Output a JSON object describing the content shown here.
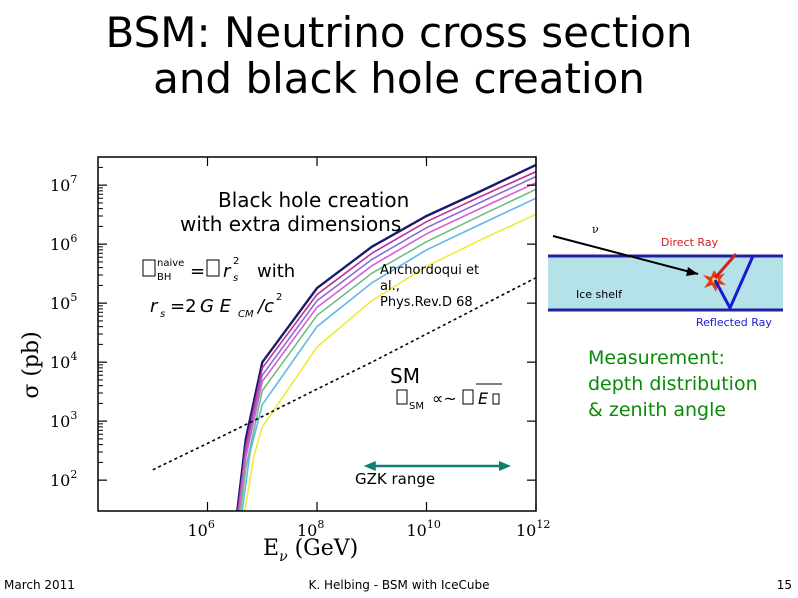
{
  "slide": {
    "title_line1": "BSM: Neutrino cross section",
    "title_line2": "and black hole creation",
    "measurement_line1": "Measurement:",
    "measurement_line2": "depth distribution",
    "measurement_line3": "& zenith angle",
    "footer_left": "March 2011",
    "footer_center": "K. Helbing - BSM with IceCube",
    "footer_right": "15"
  },
  "inset": {
    "nu_label": "ν",
    "direct_ray": "Direct Ray",
    "ice_shelf": "Ice shelf",
    "reflected_ray": "Reflected Ray"
  },
  "colors": {
    "title": "#000000",
    "measurement": "#0a8a0a",
    "gzk_arrow": "#0f7f73",
    "direct_ray": "#d02020",
    "reflected_ray": "#1a1ad0",
    "ice": "#b4e2e8",
    "ice_boundary": "#2020a0"
  },
  "chart_data": {
    "type": "line",
    "xlabel": "E_ν (GeV)",
    "ylabel": "σ (pb)",
    "x_scale": "log",
    "y_scale": "log",
    "xlim": [
      10000,
      1000000000000
    ],
    "ylim": [
      30,
      30000000
    ],
    "x_ticks": [
      {
        "exp": "6",
        "value": 1000000
      },
      {
        "exp": "8",
        "value": 100000000
      },
      {
        "exp": "10",
        "value": 10000000000
      },
      {
        "exp": "12",
        "value": 1000000000000
      }
    ],
    "y_ticks": [
      {
        "exp": "2",
        "value": 100
      },
      {
        "exp": "3",
        "value": 1000
      },
      {
        "exp": "4",
        "value": 10000
      },
      {
        "exp": "5",
        "value": 100000
      },
      {
        "exp": "6",
        "value": 1000000
      },
      {
        "exp": "7",
        "value": 10000000
      }
    ],
    "tick_base": "10",
    "annotations": {
      "bh_title_line1": "Black hole creation",
      "bh_title_line2": "with extra dimensions",
      "formula1": "□BH^naive = □ r_s² with",
      "formula1_sub": "naive",
      "formula2": "r_s = 2 G E_CM / c²",
      "citation_line1": "Anchordoqui et",
      "citation_line2": "al.,",
      "citation_line3": "Phys.Rev.D 68",
      "sm_label": "SM",
      "sm_formula": "□SM ∝ ~ □E",
      "gzk_label": "GZK range"
    },
    "gzk_range": [
      1000000000,
      1000000000000
    ],
    "series": [
      {
        "style": "black-hole",
        "color": "#1a1a6e",
        "x": [
          3500000,
          5000000,
          10000000,
          100000000,
          1000000000,
          10000000000,
          100000000000,
          1000000000000
        ],
        "y": [
          30,
          500,
          10000,
          180000,
          900000,
          3000000,
          8000000,
          22000000
        ]
      },
      {
        "style": "black-hole",
        "color": "#c03090",
        "x": [
          3600000,
          5000000,
          10000000,
          100000000,
          1000000000,
          10000000000,
          100000000000,
          1000000000000
        ],
        "y": [
          30,
          380,
          8000,
          140000,
          700000,
          2400000,
          6500000,
          17000000
        ]
      },
      {
        "style": "black-hole",
        "color": "#8c6ad8",
        "x": [
          3700000,
          5000000,
          10000000,
          100000000,
          1000000000,
          10000000000,
          100000000000,
          1000000000000
        ],
        "y": [
          30,
          300,
          6000,
          110000,
          550000,
          1900000,
          5200000,
          14000000
        ]
      },
      {
        "style": "black-hole",
        "color": "#d75fd3",
        "x": [
          3800000,
          5000000,
          10000000,
          100000000,
          1000000000,
          10000000000,
          100000000000,
          1000000000000
        ],
        "y": [
          30,
          240,
          4700,
          85000,
          430000,
          1500000,
          4100000,
          11000000
        ]
      },
      {
        "style": "black-hole",
        "color": "#6ac27a",
        "x": [
          4000000,
          5000000,
          10000000,
          100000000,
          1000000000,
          10000000000,
          100000000000,
          1000000000000
        ],
        "y": [
          30,
          160,
          3300,
          62000,
          320000,
          1100000,
          3100000,
          8500000
        ]
      },
      {
        "style": "black-hole",
        "color": "#62b7e6",
        "x": [
          4300000,
          6000000,
          10000000,
          100000000,
          1000000000,
          10000000000,
          100000000000,
          1000000000000
        ],
        "y": [
          30,
          300,
          1900,
          40000,
          220000,
          800000,
          2200000,
          6000000
        ]
      },
      {
        "style": "black-hole",
        "color": "#f0ea3a",
        "x": [
          4800000,
          7000000,
          10000000,
          100000000,
          1000000000,
          10000000000,
          100000000000,
          1000000000000
        ],
        "y": [
          30,
          250,
          800,
          18000,
          110000,
          420000,
          1200000,
          3200000
        ]
      },
      {
        "style": "sm",
        "color": "#000000",
        "x": [
          100000,
          1000000,
          10000000,
          100000000,
          1000000000,
          10000000000,
          100000000000,
          1000000000000
        ],
        "y": [
          150,
          420,
          1200,
          3500,
          10000,
          30000,
          90000,
          270000
        ]
      }
    ]
  }
}
